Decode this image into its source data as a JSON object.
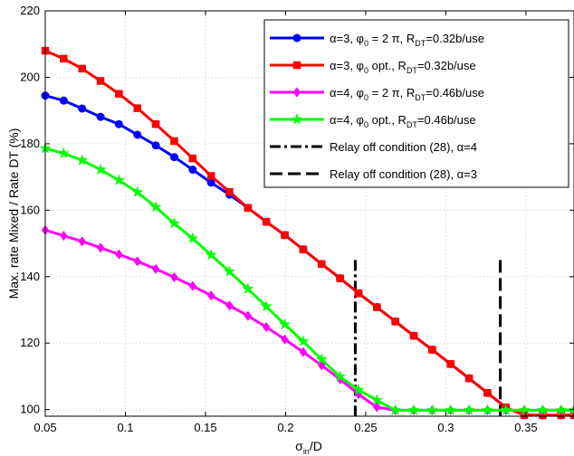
{
  "chart_data": {
    "type": "line",
    "xlabel": "σ_in/D",
    "xlabel_main": "σ",
    "xlabel_sub": "in",
    "xlabel_tail": "/D",
    "ylabel": "Max. rate Mixed / Rate DT (%)",
    "xlim": [
      0.05,
      0.38
    ],
    "ylim": [
      98,
      220
    ],
    "xticks": [
      0.05,
      0.1,
      0.15,
      0.2,
      0.25,
      0.3,
      0.35
    ],
    "xtick_labels": [
      "0.05",
      "0.1",
      "0.15",
      "0.2",
      "0.25",
      "0.3",
      "0.35"
    ],
    "yticks": [
      100,
      120,
      140,
      160,
      180,
      200,
      220
    ],
    "ytick_labels": [
      "100",
      "120",
      "140",
      "160",
      "180",
      "200",
      "220"
    ],
    "grid": true,
    "legend_position": "top-right",
    "x": [
      0.05,
      0.0615,
      0.073,
      0.0845,
      0.096,
      0.1075,
      0.119,
      0.1305,
      0.142,
      0.1535,
      0.165,
      0.1765,
      0.188,
      0.1995,
      0.211,
      0.2225,
      0.234,
      0.2455,
      0.257,
      0.2685,
      0.28,
      0.2915,
      0.303,
      0.3145,
      0.326,
      0.3375,
      0.349,
      0.3605,
      0.372,
      0.38
    ],
    "series": [
      {
        "name": "α=3, φ0 = 2 π, R_DT=0.32b/use",
        "color": "#0000ff",
        "marker": "circle",
        "values": [
          194.5,
          193,
          190.6,
          188.1,
          185.9,
          182.7,
          179.5,
          176,
          172.2,
          168.3,
          164.7,
          160.7,
          156.5,
          152.5,
          148.2,
          143.8,
          139.5,
          135,
          130.8,
          126.5,
          122.2,
          118,
          113.7,
          109.4,
          105,
          100.6,
          98.3,
          98.3,
          98.3,
          98.3
        ]
      },
      {
        "name": "α=3, φ0 opt., R_DT=0.32b/use",
        "color": "#ff0000",
        "marker": "square",
        "values": [
          208,
          205.6,
          202.6,
          198.9,
          195,
          190.7,
          185.9,
          180.8,
          175.6,
          170.3,
          165.5,
          160.7,
          156.5,
          152.5,
          148.2,
          143.8,
          139.5,
          135,
          130.8,
          126.5,
          122.2,
          118,
          113.7,
          109.4,
          105,
          100.6,
          98.3,
          98.3,
          98.3,
          98.3
        ]
      },
      {
        "name": "α=4, φ0 = 2 π, R_DT=0.46b/use",
        "color": "#ff00ff",
        "marker": "diamond",
        "values": [
          154,
          152.3,
          150.6,
          148.7,
          146.7,
          144.6,
          142.3,
          139.8,
          137.2,
          134.3,
          131.3,
          128.2,
          124.8,
          121.1,
          117.3,
          113.3,
          109.1,
          104.6,
          100.7,
          99.8,
          99.8,
          99.8,
          99.8,
          99.8,
          99.8,
          99.8,
          99.8,
          99.8,
          99.8,
          99.8
        ]
      },
      {
        "name": "α=4, φ0 opt., R_DT=0.46b/use",
        "color": "#00ff00",
        "marker": "star",
        "values": [
          178.6,
          177.1,
          175,
          172.2,
          169,
          165.4,
          160.9,
          156,
          151.5,
          146.5,
          141.5,
          136.3,
          131,
          125.6,
          120.5,
          115.1,
          109.9,
          105.9,
          102.8,
          99.8,
          99.8,
          99.8,
          99.8,
          99.8,
          99.8,
          99.8,
          99.8,
          99.8,
          99.8,
          99.8
        ]
      }
    ],
    "vlines": [
      {
        "name": "Relay off condition (28), α=4",
        "x": 0.2435,
        "style": "dashdot",
        "color": "#000000"
      },
      {
        "name": "Relay off condition (28), α=3",
        "x": 0.334,
        "style": "dashed",
        "color": "#000000"
      }
    ]
  },
  "legend": [
    {
      "pre": "α=3, φ",
      "sub": "0",
      "mid": " = 2 π, R",
      "sub2": "DT",
      "post": "=0.32b/use"
    },
    {
      "pre": "α=3, φ",
      "sub": "0",
      "mid": " opt., R",
      "sub2": "DT",
      "post": "=0.32b/use"
    },
    {
      "pre": "α=4, φ",
      "sub": "0",
      "mid": " = 2 π, R",
      "sub2": "DT",
      "post": "=0.46b/use"
    },
    {
      "pre": "α=4, φ",
      "sub": "0",
      "mid": " opt., R",
      "sub2": "DT",
      "post": "=0.46b/use"
    },
    {
      "pre": "Relay off condition (28), α=4",
      "sub": "",
      "mid": "",
      "sub2": "",
      "post": ""
    },
    {
      "pre": "Relay off condition (28), α=3",
      "sub": "",
      "mid": "",
      "sub2": "",
      "post": ""
    }
  ]
}
